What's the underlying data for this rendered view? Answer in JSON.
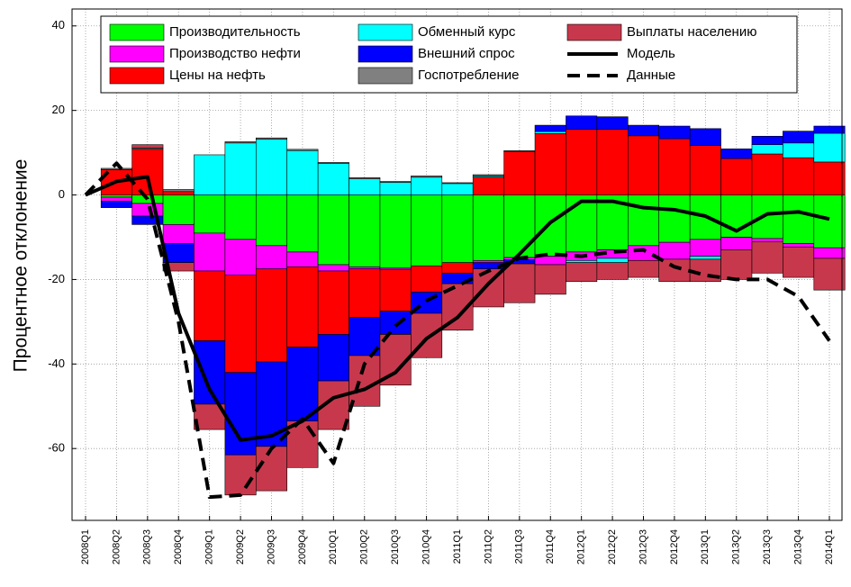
{
  "chart_data": {
    "type": "bar",
    "stacked": true,
    "ylabel": "Процентное отклонение",
    "categories": [
      "2008Q1",
      "2008Q2",
      "2008Q3",
      "2008Q4",
      "2009Q1",
      "2009Q2",
      "2009Q3",
      "2009Q4",
      "2010Q1",
      "2010Q2",
      "2010Q3",
      "2010Q4",
      "2011Q1",
      "2011Q2",
      "2011Q3",
      "2011Q4",
      "2012Q1",
      "2012Q2",
      "2012Q3",
      "2012Q4",
      "2013Q1",
      "2013Q2",
      "2013Q3",
      "2013Q4",
      "2014Q1"
    ],
    "series": [
      {
        "name": "Производительность",
        "color": "#00ff00",
        "values": [
          0,
          -0.5,
          -2,
          -7,
          -9,
          -10.5,
          -12,
          -13.5,
          -16.5,
          -17,
          -17.3,
          -16.8,
          -16,
          -15.5,
          -14.8,
          -14.5,
          -13.5,
          -13,
          -12,
          -11.2,
          -10.5,
          -10,
          -10.3,
          -11.5,
          -12.5
        ]
      },
      {
        "name": "Производство нефти",
        "color": "#ff00ff",
        "values": [
          0,
          -1,
          -3,
          -4.5,
          -9,
          -8.5,
          -5.5,
          -3.5,
          -1.5,
          -0.5,
          -0.3,
          0,
          0,
          -0.5,
          -0.5,
          -2,
          -2,
          -2,
          -3.5,
          -4,
          -4,
          -3,
          -0.8,
          -0.8,
          -2.5
        ]
      },
      {
        "name": "Цены на нефть",
        "color": "#ff0000",
        "values": [
          0,
          6,
          10.8,
          0.8,
          -16.5,
          -23,
          -22,
          -19,
          -15,
          -11.5,
          -9.9,
          -6.2,
          -2.5,
          4.2,
          10.3,
          14.5,
          15.5,
          15.5,
          14,
          13.3,
          11.7,
          8.6,
          9.7,
          8.8,
          7.8
        ]
      },
      {
        "name": "Обменный курс",
        "color": "#00ffff",
        "values": [
          0,
          0,
          0,
          0,
          9.5,
          12.3,
          13.2,
          10.5,
          7.5,
          3.8,
          3,
          4.2,
          2.7,
          0.3,
          0,
          0.5,
          -0.5,
          -1,
          0,
          0,
          -0.7,
          0,
          2.2,
          3.5,
          6.8
        ]
      },
      {
        "name": "Внешний спрос",
        "color": "#0000ff",
        "values": [
          0,
          -1.5,
          -2,
          -4.5,
          -15,
          -19.5,
          -20,
          -17.5,
          -11,
          -9,
          -5.5,
          -5,
          -2.5,
          -1.5,
          -1,
          1.5,
          3.2,
          3,
          2.5,
          3,
          4,
          2.3,
          2,
          2.8,
          1.7
        ]
      },
      {
        "name": "Госпотребление",
        "color": "#808080",
        "values": [
          0,
          0.3,
          0.3,
          0.5,
          0,
          0.3,
          0.3,
          0.3,
          0.2,
          0.3,
          0.2,
          0.3,
          0.2,
          0.3,
          0.2,
          0,
          0,
          0,
          0,
          0,
          0,
          0,
          0,
          0,
          0
        ]
      },
      {
        "name": "Выплаты населению",
        "color": "#c8384c",
        "values": [
          0,
          0,
          0.8,
          -2,
          -6,
          -9.5,
          -10.5,
          -11,
          -11.5,
          -12,
          -12,
          -10.5,
          -11,
          -9,
          -9.2,
          -7,
          -4.5,
          -4,
          -4,
          -5.3,
          -5.3,
          -7,
          -7.4,
          -7.2,
          -7.5
        ]
      }
    ],
    "lines": [
      {
        "name": "Модель",
        "color": "#000000",
        "style": "solid",
        "values": [
          0,
          3.2,
          4.3,
          -28,
          -46,
          -58,
          -57,
          -53.5,
          -48,
          -46,
          -42,
          -34,
          -29,
          -21,
          -14,
          -6.5,
          -1.5,
          -1.5,
          -3,
          -3.5,
          -5,
          -8.5,
          -4.5,
          -4,
          -5.7
        ]
      },
      {
        "name": "Данные",
        "color": "#000000",
        "style": "dashed",
        "values": [
          0,
          7.5,
          -1,
          -30,
          -71.5,
          -71,
          -60,
          -53,
          -63.5,
          -40,
          -31,
          -25,
          -21.5,
          -18,
          -15,
          -14,
          -14.5,
          -13.5,
          -13,
          -17,
          -19,
          -20,
          -20,
          -24,
          -34.5
        ]
      }
    ],
    "ylim": [
      -77,
      44
    ],
    "yticks": [
      -60,
      -40,
      -20,
      0,
      20,
      40
    ],
    "grid": true
  }
}
